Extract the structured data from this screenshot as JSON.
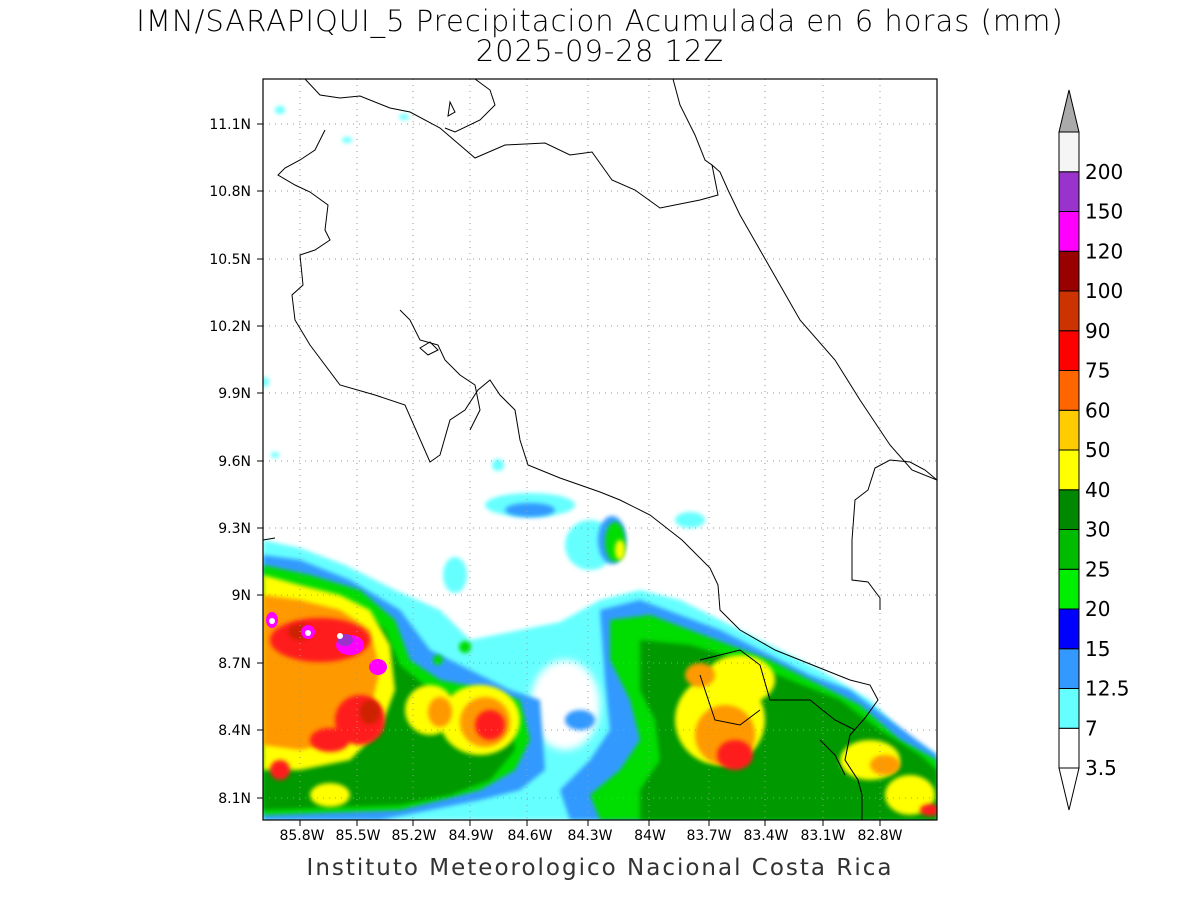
{
  "title": {
    "line1": "IMN/SARAPIQUI_5 Precipitacion Acumulada en 6 horas (mm)",
    "line2": "2025-09-28 12Z"
  },
  "footer": "Instituto Meteorologico Nacional Costa Rica",
  "axes": {
    "lat_labels": [
      "11.1N",
      "10.8N",
      "10.5N",
      "10.2N",
      "9.9N",
      "9.6N",
      "9.3N",
      "9N",
      "8.7N",
      "8.4N",
      "8.1N"
    ],
    "lon_labels": [
      "85.8W",
      "85.5W",
      "85.2W",
      "84.9W",
      "84.6W",
      "84.3W",
      "84W",
      "83.7W",
      "83.4W",
      "83.1W",
      "82.8W"
    ]
  },
  "colorbar": {
    "levels": [
      "3.5",
      "7",
      "12.5",
      "15",
      "20",
      "25",
      "30",
      "40",
      "50",
      "60",
      "75",
      "90",
      "100",
      "120",
      "150",
      "200"
    ],
    "colors": [
      "#ffffff",
      "#66ffff",
      "#3399ff",
      "#0000ff",
      "#00ee00",
      "#00bb00",
      "#008800",
      "#ffff00",
      "#ffcc00",
      "#ff6600",
      "#ff0000",
      "#cc3300",
      "#990000",
      "#ff00ff",
      "#9933cc",
      "#f5f5f5"
    ],
    "over_color": "#aaaaaa",
    "under_color": "#ffffff"
  }
}
